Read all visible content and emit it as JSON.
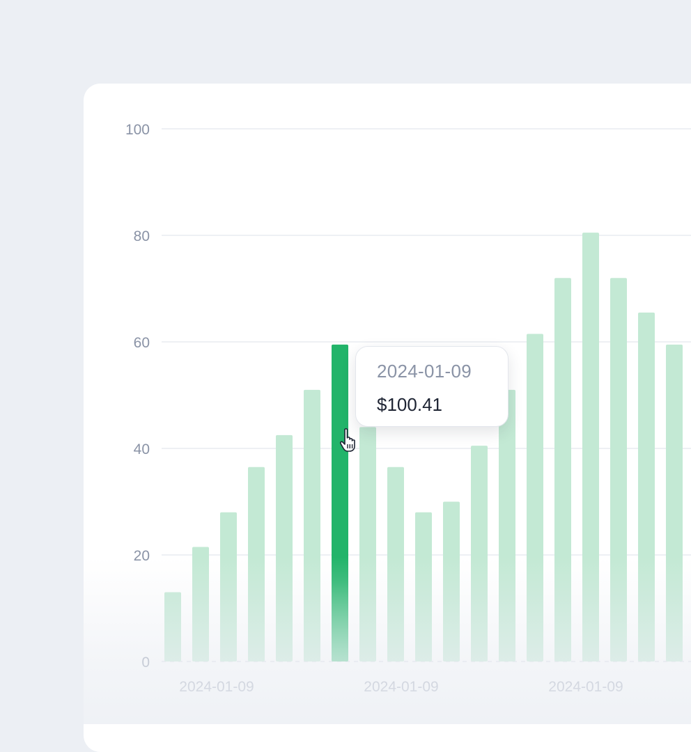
{
  "chart_data": {
    "type": "bar",
    "ylim": [
      0,
      100
    ],
    "yticks": [
      0,
      20,
      40,
      60,
      80,
      100
    ],
    "values": [
      13,
      21.5,
      28,
      36.5,
      42.5,
      51,
      59.5,
      44,
      36.5,
      28,
      30,
      40.5,
      51,
      61.5,
      72,
      80.5,
      72,
      65.5,
      59.5
    ],
    "highlighted_index": 6,
    "x_tick_labels": [
      "2024-01-09",
      "2024-01-09",
      "2024-01-09"
    ],
    "bar_color": "#c3e9d4",
    "highlight_color": "#22b46a",
    "grid": true
  },
  "tooltip": {
    "date": "2024-01-09",
    "value": "$100.41"
  },
  "cursor_icon": "hand-pointer-icon"
}
